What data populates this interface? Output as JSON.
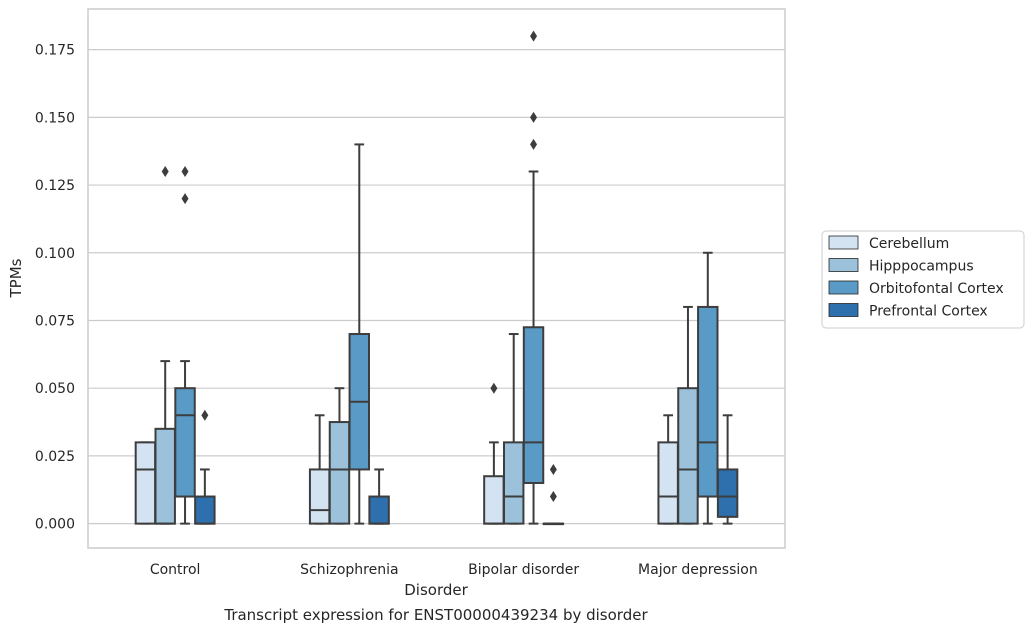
{
  "chart_data": {
    "type": "box",
    "title": "",
    "caption": "Transcript expression for ENST00000439234 by disorder",
    "xlabel": "Disorder",
    "ylabel": "TPMs",
    "ylim": [
      -0.009,
      0.19
    ],
    "yticks": [
      "0.000",
      "0.025",
      "0.050",
      "0.075",
      "0.100",
      "0.125",
      "0.150",
      "0.175"
    ],
    "grid": "horizontal",
    "legend_position": "right",
    "categories": [
      "Control",
      "Schizophrenia",
      "Bipolar disorder",
      "Major depression"
    ],
    "series": [
      {
        "name": "Cerebellum",
        "color": "#d4e3f2",
        "boxes": [
          {
            "whisker_low": 0,
            "q1": 0,
            "median": 0.02,
            "q3": 0.03,
            "whisker_high": 0.03,
            "outliers": []
          },
          {
            "whisker_low": 0,
            "q1": 0,
            "median": 0.005,
            "q3": 0.02,
            "whisker_high": 0.04,
            "outliers": []
          },
          {
            "whisker_low": 0,
            "q1": 0,
            "median": 0,
            "q3": 0.0175,
            "whisker_high": 0.03,
            "outliers": [
              0.05
            ]
          },
          {
            "whisker_low": 0,
            "q1": 0,
            "median": 0.01,
            "q3": 0.03,
            "whisker_high": 0.04,
            "outliers": []
          }
        ]
      },
      {
        "name": "Hipppocampus",
        "color": "#9cc2db",
        "boxes": [
          {
            "whisker_low": 0,
            "q1": 0,
            "median": 0,
            "q3": 0.035,
            "whisker_high": 0.06,
            "outliers": [
              0.13
            ]
          },
          {
            "whisker_low": 0,
            "q1": 0,
            "median": 0.02,
            "q3": 0.0375,
            "whisker_high": 0.05,
            "outliers": []
          },
          {
            "whisker_low": 0,
            "q1": 0,
            "median": 0.01,
            "q3": 0.03,
            "whisker_high": 0.07,
            "outliers": []
          },
          {
            "whisker_low": 0,
            "q1": 0,
            "median": 0.02,
            "q3": 0.05,
            "whisker_high": 0.08,
            "outliers": []
          }
        ]
      },
      {
        "name": "Orbitofontal Cortex",
        "color": "#5a9ac7",
        "boxes": [
          {
            "whisker_low": 0,
            "q1": 0.01,
            "median": 0.04,
            "q3": 0.05,
            "whisker_high": 0.06,
            "outliers": [
              0.12,
              0.13
            ]
          },
          {
            "whisker_low": 0,
            "q1": 0.02,
            "median": 0.045,
            "q3": 0.07,
            "whisker_high": 0.14,
            "outliers": []
          },
          {
            "whisker_low": 0,
            "q1": 0.015,
            "median": 0.03,
            "q3": 0.0725,
            "whisker_high": 0.13,
            "outliers": [
              0.14,
              0.15,
              0.18
            ]
          },
          {
            "whisker_low": 0,
            "q1": 0.01,
            "median": 0.03,
            "q3": 0.08,
            "whisker_high": 0.1,
            "outliers": []
          }
        ]
      },
      {
        "name": "Prefrontal Cortex",
        "color": "#2e6fad",
        "boxes": [
          {
            "whisker_low": 0,
            "q1": 0,
            "median": 0,
            "q3": 0.01,
            "whisker_high": 0.02,
            "outliers": [
              0.04
            ]
          },
          {
            "whisker_low": 0,
            "q1": 0,
            "median": 0,
            "q3": 0.01,
            "whisker_high": 0.02,
            "outliers": []
          },
          {
            "whisker_low": 0,
            "q1": 0,
            "median": 0,
            "q3": 0,
            "whisker_high": 0,
            "outliers": [
              0.01,
              0.02
            ]
          },
          {
            "whisker_low": 0,
            "q1": 0.0025,
            "median": 0.01,
            "q3": 0.02,
            "whisker_high": 0.04,
            "outliers": []
          }
        ]
      }
    ]
  }
}
